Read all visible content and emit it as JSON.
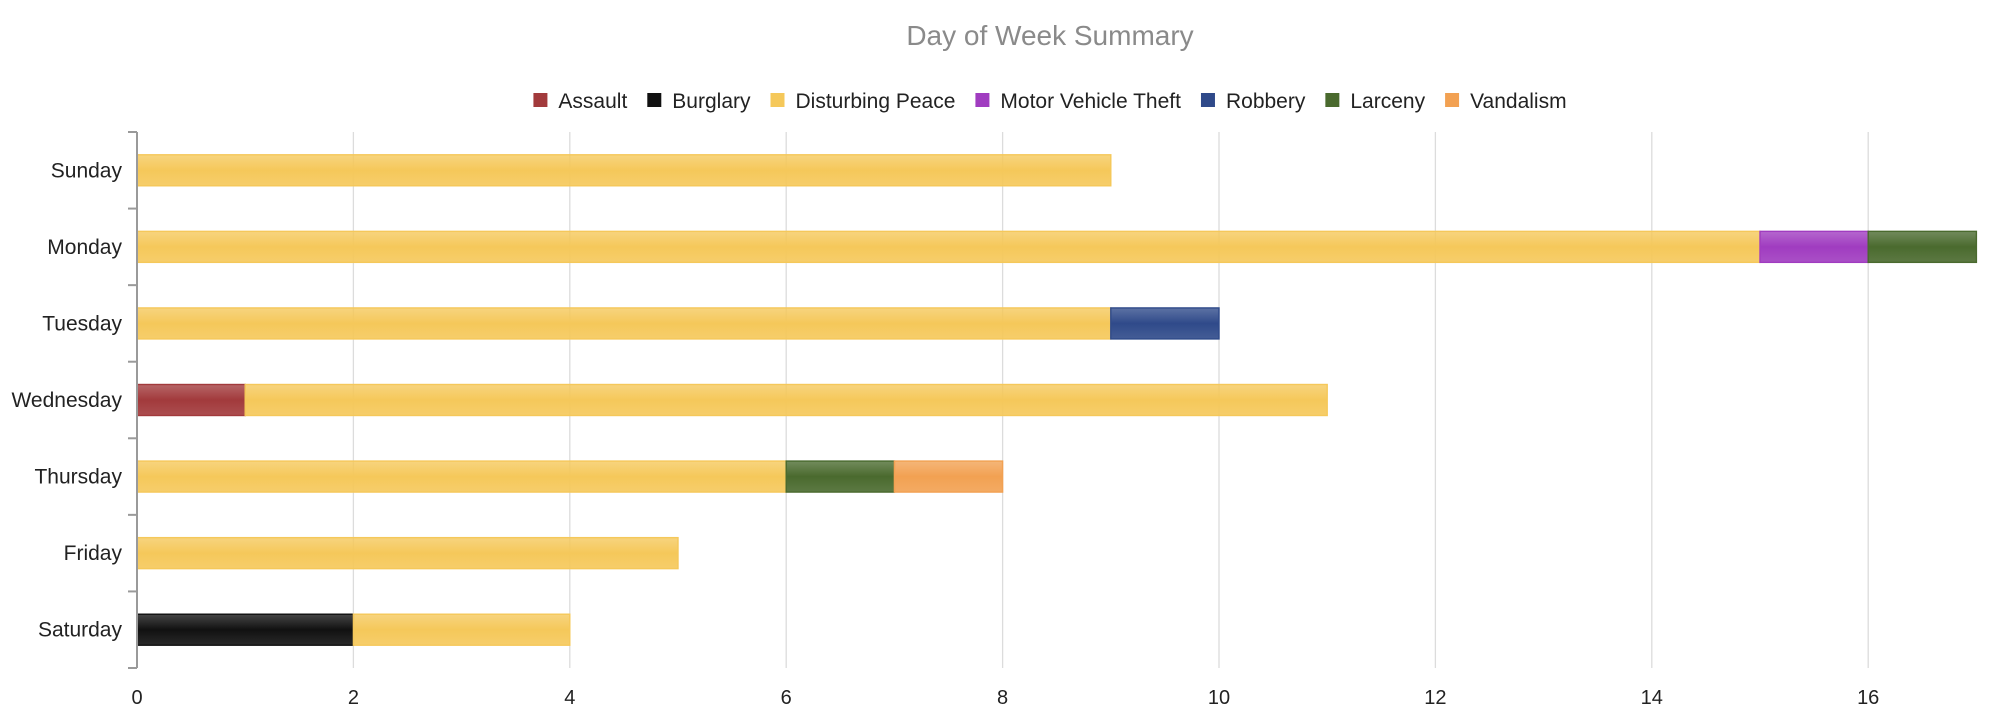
{
  "chart_data": {
    "type": "bar",
    "orientation": "horizontal",
    "stacked": true,
    "title": "Day of Week Summary",
    "xlabel": "",
    "ylabel": "",
    "legend_position": "top",
    "grid": true,
    "xlim": [
      0,
      17
    ],
    "x_ticks": [
      "0",
      "2",
      "4",
      "6",
      "8",
      "10",
      "12",
      "14",
      "16"
    ],
    "categories": [
      "Sunday",
      "Monday",
      "Tuesday",
      "Wednesday",
      "Thursday",
      "Friday",
      "Saturday"
    ],
    "series": [
      {
        "name": "Assault",
        "color": "#a23a3c",
        "values": [
          0,
          0,
          0,
          1,
          0,
          0,
          0
        ]
      },
      {
        "name": "Burglary",
        "color": "#111111",
        "values": [
          0,
          0,
          0,
          0,
          0,
          0,
          2
        ]
      },
      {
        "name": "Disturbing Peace",
        "color": "#f5c85a",
        "values": [
          9,
          15,
          9,
          10,
          6,
          5,
          2
        ]
      },
      {
        "name": "Motor Vehicle Theft",
        "color": "#a03cc0",
        "values": [
          0,
          1,
          0,
          0,
          0,
          0,
          0
        ]
      },
      {
        "name": "Robbery",
        "color": "#2f4a8a",
        "values": [
          0,
          0,
          1,
          0,
          0,
          0,
          0
        ]
      },
      {
        "name": "Larceny",
        "color": "#4a6a2e",
        "values": [
          0,
          1,
          0,
          0,
          1,
          0,
          0
        ]
      },
      {
        "name": "Vandalism",
        "color": "#f2a152",
        "values": [
          0,
          0,
          0,
          0,
          1,
          0,
          0
        ]
      }
    ]
  }
}
